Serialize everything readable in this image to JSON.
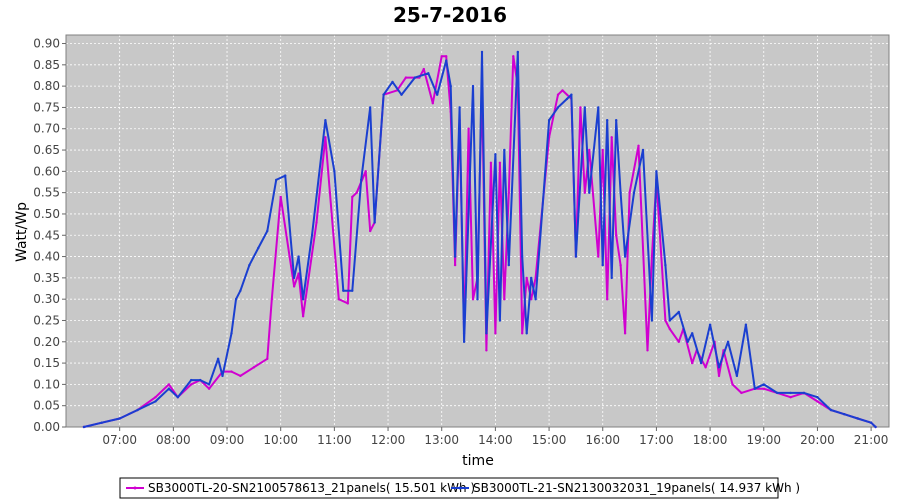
{
  "chart_data": {
    "type": "line",
    "title": "25-7-2016",
    "xlabel": "time",
    "ylabel": "Watt/Wp",
    "xlim": [
      "06:00",
      "21:20"
    ],
    "ylim": [
      0,
      0.92
    ],
    "xticks": [
      "07:00",
      "08:00",
      "09:00",
      "10:00",
      "11:00",
      "12:00",
      "13:00",
      "14:00",
      "15:00",
      "16:00",
      "17:00",
      "18:00",
      "19:00",
      "20:00",
      "21:00"
    ],
    "yticks": [
      "0.00",
      "0.05",
      "0.10",
      "0.15",
      "0.20",
      "0.25",
      "0.30",
      "0.35",
      "0.40",
      "0.45",
      "0.50",
      "0.55",
      "0.60",
      "0.65",
      "0.70",
      "0.75",
      "0.80",
      "0.85",
      "0.90"
    ],
    "grid": true,
    "legend_position": "bottom",
    "colors": {
      "plot_background": "#c8c8c8",
      "grid": "#ffffff"
    },
    "series": [
      {
        "name": "SB3000TL-20-SN2100578613_21panels( 15.501 kWh )",
        "color": "#d000d0",
        "points": [
          [
            "06:20",
            0.0
          ],
          [
            "06:40",
            0.01
          ],
          [
            "07:00",
            0.02
          ],
          [
            "07:20",
            0.04
          ],
          [
            "07:40",
            0.07
          ],
          [
            "07:55",
            0.1
          ],
          [
            "08:05",
            0.07
          ],
          [
            "08:20",
            0.1
          ],
          [
            "08:30",
            0.11
          ],
          [
            "08:40",
            0.09
          ],
          [
            "08:55",
            0.13
          ],
          [
            "09:05",
            0.13
          ],
          [
            "09:15",
            0.12
          ],
          [
            "09:30",
            0.14
          ],
          [
            "09:45",
            0.16
          ],
          [
            "09:50",
            0.3
          ],
          [
            "10:00",
            0.54
          ],
          [
            "10:10",
            0.4
          ],
          [
            "10:15",
            0.33
          ],
          [
            "10:20",
            0.36
          ],
          [
            "10:25",
            0.26
          ],
          [
            "10:40",
            0.48
          ],
          [
            "10:50",
            0.68
          ],
          [
            "10:55",
            0.55
          ],
          [
            "11:05",
            0.3
          ],
          [
            "11:15",
            0.29
          ],
          [
            "11:20",
            0.54
          ],
          [
            "11:25",
            0.55
          ],
          [
            "11:35",
            0.6
          ],
          [
            "11:40",
            0.46
          ],
          [
            "11:45",
            0.48
          ],
          [
            "11:55",
            0.78
          ],
          [
            "12:10",
            0.79
          ],
          [
            "12:20",
            0.82
          ],
          [
            "12:35",
            0.82
          ],
          [
            "12:40",
            0.84
          ],
          [
            "12:50",
            0.76
          ],
          [
            "13:00",
            0.87
          ],
          [
            "13:05",
            0.87
          ],
          [
            "13:10",
            0.74
          ],
          [
            "13:15",
            0.38
          ],
          [
            "13:20",
            0.72
          ],
          [
            "13:25",
            0.22
          ],
          [
            "13:30",
            0.7
          ],
          [
            "13:35",
            0.3
          ],
          [
            "13:40",
            0.35
          ],
          [
            "13:45",
            0.8
          ],
          [
            "13:50",
            0.18
          ],
          [
            "13:55",
            0.62
          ],
          [
            "14:00",
            0.22
          ],
          [
            "14:05",
            0.62
          ],
          [
            "14:10",
            0.3
          ],
          [
            "14:15",
            0.55
          ],
          [
            "14:20",
            0.87
          ],
          [
            "14:25",
            0.8
          ],
          [
            "14:30",
            0.22
          ],
          [
            "14:35",
            0.35
          ],
          [
            "14:40",
            0.3
          ],
          [
            "14:45",
            0.35
          ],
          [
            "15:00",
            0.68
          ],
          [
            "15:10",
            0.78
          ],
          [
            "15:15",
            0.79
          ],
          [
            "15:25",
            0.77
          ],
          [
            "15:30",
            0.4
          ],
          [
            "15:35",
            0.75
          ],
          [
            "15:40",
            0.55
          ],
          [
            "15:45",
            0.65
          ],
          [
            "15:55",
            0.4
          ],
          [
            "16:00",
            0.65
          ],
          [
            "16:05",
            0.3
          ],
          [
            "16:10",
            0.68
          ],
          [
            "16:15",
            0.45
          ],
          [
            "16:20",
            0.38
          ],
          [
            "16:25",
            0.22
          ],
          [
            "16:30",
            0.55
          ],
          [
            "16:40",
            0.66
          ],
          [
            "16:50",
            0.18
          ],
          [
            "16:55",
            0.4
          ],
          [
            "17:00",
            0.58
          ],
          [
            "17:10",
            0.25
          ],
          [
            "17:15",
            0.23
          ],
          [
            "17:25",
            0.2
          ],
          [
            "17:30",
            0.23
          ],
          [
            "17:40",
            0.15
          ],
          [
            "17:45",
            0.18
          ],
          [
            "17:55",
            0.14
          ],
          [
            "18:05",
            0.2
          ],
          [
            "18:10",
            0.12
          ],
          [
            "18:15",
            0.18
          ],
          [
            "18:25",
            0.1
          ],
          [
            "18:35",
            0.08
          ],
          [
            "18:50",
            0.09
          ],
          [
            "19:00",
            0.09
          ],
          [
            "19:15",
            0.08
          ],
          [
            "19:30",
            0.07
          ],
          [
            "19:45",
            0.08
          ],
          [
            "20:00",
            0.06
          ],
          [
            "20:15",
            0.04
          ],
          [
            "20:30",
            0.03
          ],
          [
            "20:45",
            0.02
          ],
          [
            "21:00",
            0.01
          ],
          [
            "21:05",
            0.0
          ]
        ]
      },
      {
        "name": "SB3000TL-21-SN2130032031_19panels( 14.937 kWh )",
        "color": "#1a3fd0",
        "points": [
          [
            "06:20",
            0.0
          ],
          [
            "06:40",
            0.01
          ],
          [
            "07:00",
            0.02
          ],
          [
            "07:20",
            0.04
          ],
          [
            "07:40",
            0.06
          ],
          [
            "07:55",
            0.09
          ],
          [
            "08:05",
            0.07
          ],
          [
            "08:20",
            0.11
          ],
          [
            "08:30",
            0.11
          ],
          [
            "08:40",
            0.1
          ],
          [
            "08:50",
            0.16
          ],
          [
            "08:55",
            0.12
          ],
          [
            "09:05",
            0.22
          ],
          [
            "09:10",
            0.3
          ],
          [
            "09:15",
            0.32
          ],
          [
            "09:25",
            0.38
          ],
          [
            "09:35",
            0.42
          ],
          [
            "09:45",
            0.46
          ],
          [
            "09:55",
            0.58
          ],
          [
            "10:05",
            0.59
          ],
          [
            "10:15",
            0.35
          ],
          [
            "10:20",
            0.4
          ],
          [
            "10:25",
            0.3
          ],
          [
            "10:35",
            0.45
          ],
          [
            "10:50",
            0.72
          ],
          [
            "11:00",
            0.6
          ],
          [
            "11:10",
            0.32
          ],
          [
            "11:20",
            0.32
          ],
          [
            "11:30",
            0.58
          ],
          [
            "11:40",
            0.75
          ],
          [
            "11:45",
            0.48
          ],
          [
            "11:55",
            0.78
          ],
          [
            "12:05",
            0.81
          ],
          [
            "12:15",
            0.78
          ],
          [
            "12:30",
            0.82
          ],
          [
            "12:45",
            0.83
          ],
          [
            "12:55",
            0.78
          ],
          [
            "13:05",
            0.86
          ],
          [
            "13:10",
            0.8
          ],
          [
            "13:15",
            0.4
          ],
          [
            "13:20",
            0.75
          ],
          [
            "13:25",
            0.2
          ],
          [
            "13:35",
            0.8
          ],
          [
            "13:40",
            0.3
          ],
          [
            "13:45",
            0.88
          ],
          [
            "13:50",
            0.22
          ],
          [
            "14:00",
            0.64
          ],
          [
            "14:05",
            0.25
          ],
          [
            "14:10",
            0.65
          ],
          [
            "14:15",
            0.38
          ],
          [
            "14:25",
            0.88
          ],
          [
            "14:30",
            0.4
          ],
          [
            "14:35",
            0.22
          ],
          [
            "14:40",
            0.35
          ],
          [
            "14:45",
            0.3
          ],
          [
            "15:00",
            0.72
          ],
          [
            "15:10",
            0.75
          ],
          [
            "15:20",
            0.77
          ],
          [
            "15:25",
            0.78
          ],
          [
            "15:30",
            0.4
          ],
          [
            "15:40",
            0.75
          ],
          [
            "15:45",
            0.55
          ],
          [
            "15:55",
            0.75
          ],
          [
            "16:00",
            0.38
          ],
          [
            "16:05",
            0.72
          ],
          [
            "16:10",
            0.35
          ],
          [
            "16:15",
            0.72
          ],
          [
            "16:20",
            0.55
          ],
          [
            "16:25",
            0.4
          ],
          [
            "16:35",
            0.55
          ],
          [
            "16:45",
            0.65
          ],
          [
            "16:55",
            0.25
          ],
          [
            "17:00",
            0.6
          ],
          [
            "17:10",
            0.38
          ],
          [
            "17:15",
            0.25
          ],
          [
            "17:25",
            0.27
          ],
          [
            "17:35",
            0.2
          ],
          [
            "17:40",
            0.22
          ],
          [
            "17:50",
            0.15
          ],
          [
            "18:00",
            0.24
          ],
          [
            "18:10",
            0.14
          ],
          [
            "18:20",
            0.2
          ],
          [
            "18:30",
            0.12
          ],
          [
            "18:40",
            0.24
          ],
          [
            "18:50",
            0.09
          ],
          [
            "19:00",
            0.1
          ],
          [
            "19:15",
            0.08
          ],
          [
            "19:30",
            0.08
          ],
          [
            "19:45",
            0.08
          ],
          [
            "20:00",
            0.07
          ],
          [
            "20:15",
            0.04
          ],
          [
            "20:30",
            0.03
          ],
          [
            "20:45",
            0.02
          ],
          [
            "21:00",
            0.01
          ],
          [
            "21:05",
            0.0
          ]
        ]
      }
    ]
  }
}
